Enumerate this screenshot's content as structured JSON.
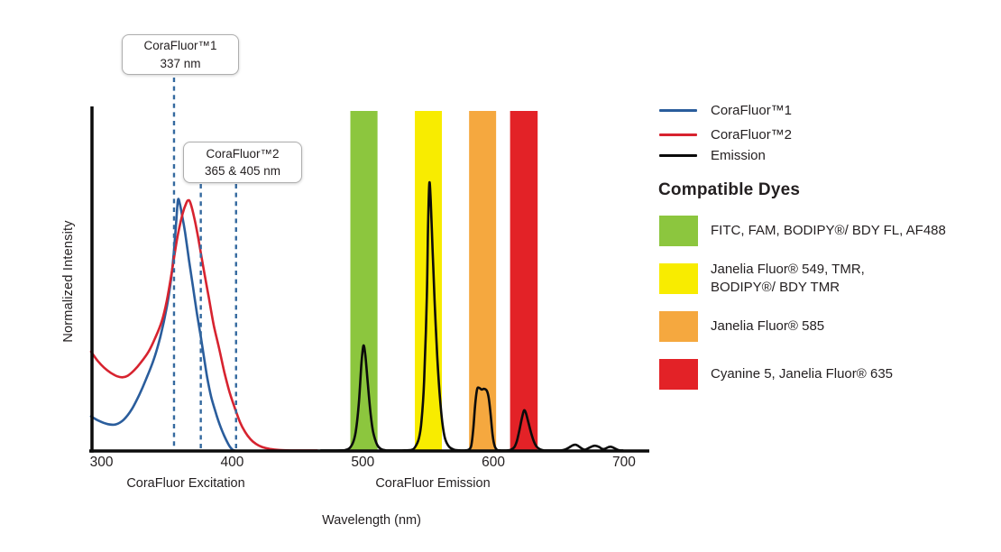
{
  "chart_data": {
    "type": "line",
    "title": "",
    "xlabel": "Wavelength (nm)",
    "ylabel": "Normalized Intensity",
    "x_ticks": [
      300,
      400,
      500,
      600,
      700
    ],
    "xlim": [
      292,
      718
    ],
    "ylim": [
      0,
      1.1
    ],
    "grid": false,
    "legend_position": "right",
    "x_section_labels": [
      {
        "text": "CoraFluor Excitation"
      },
      {
        "text": "CoraFluor Emission"
      }
    ],
    "dashed_markers_nm": [
      355.5,
      376,
      403
    ],
    "marker_color": "#34699f",
    "axis_color": "#0b0b0b",
    "bands": [
      {
        "name": "FITC-FAM-BODIPY-FL-AF488-band",
        "color": "#8cc63e",
        "from_nm": 490.5,
        "to_nm": 511.3
      },
      {
        "name": "JaneliaFluor549-TMR-band",
        "color": "#f8ec00",
        "from_nm": 539.9,
        "to_nm": 560.6
      },
      {
        "name": "JaneliaFluor585-band",
        "color": "#f5a83f",
        "from_nm": 581.4,
        "to_nm": 602.1
      },
      {
        "name": "Cyanine5-JaneliaFluor635-band",
        "color": "#e32227",
        "from_nm": 612.8,
        "to_nm": 633.9
      }
    ],
    "series": [
      {
        "name": "CoraFluor™1",
        "color": "#2a5d9c",
        "points": [
          [
            292,
            0.138
          ],
          [
            298,
            0.12
          ],
          [
            305,
            0.107
          ],
          [
            311,
            0.106
          ],
          [
            317,
            0.125
          ],
          [
            323,
            0.165
          ],
          [
            329,
            0.225
          ],
          [
            334,
            0.285
          ],
          [
            340,
            0.365
          ],
          [
            345,
            0.455
          ],
          [
            350,
            0.575
          ],
          [
            353,
            0.675
          ],
          [
            355,
            0.77
          ],
          [
            357,
            0.9
          ],
          [
            358.5,
            1.0
          ],
          [
            360,
            0.985
          ],
          [
            362,
            0.93
          ],
          [
            364,
            0.87
          ],
          [
            367,
            0.76
          ],
          [
            370,
            0.655
          ],
          [
            373,
            0.55
          ],
          [
            376,
            0.455
          ],
          [
            379,
            0.355
          ],
          [
            381,
            0.29
          ],
          [
            384,
            0.215
          ],
          [
            388,
            0.144
          ],
          [
            391,
            0.098
          ],
          [
            394,
            0.06
          ],
          [
            397,
            0.028
          ],
          [
            399,
            0.012
          ],
          [
            401,
            0.002
          ],
          [
            402,
            0
          ]
        ]
      },
      {
        "name": "CoraFluor™2",
        "color": "#d7232f",
        "points": [
          [
            292,
            0.396
          ],
          [
            297,
            0.36
          ],
          [
            302,
            0.332
          ],
          [
            307,
            0.312
          ],
          [
            312,
            0.298
          ],
          [
            316,
            0.294
          ],
          [
            320,
            0.3
          ],
          [
            325,
            0.322
          ],
          [
            330,
            0.352
          ],
          [
            336,
            0.396
          ],
          [
            341,
            0.45
          ],
          [
            346,
            0.515
          ],
          [
            350,
            0.6
          ],
          [
            354,
            0.72
          ],
          [
            358,
            0.85
          ],
          [
            362,
            0.945
          ],
          [
            365,
            0.99
          ],
          [
            366.5,
            1.0
          ],
          [
            368,
            0.99
          ],
          [
            371,
            0.93
          ],
          [
            374,
            0.85
          ],
          [
            378,
            0.73
          ],
          [
            382,
            0.615
          ],
          [
            386,
            0.5
          ],
          [
            390,
            0.41
          ],
          [
            394,
            0.315
          ],
          [
            398,
            0.235
          ],
          [
            402,
            0.172
          ],
          [
            406,
            0.115
          ],
          [
            410,
            0.075
          ],
          [
            414,
            0.047
          ],
          [
            418,
            0.029
          ],
          [
            423,
            0.016
          ],
          [
            429,
            0.008
          ],
          [
            436,
            0.004
          ],
          [
            445,
            0.0015
          ],
          [
            455,
            0
          ],
          [
            465,
            0
          ]
        ]
      },
      {
        "name": "Emission",
        "color": "#0b0b0b",
        "points": [
          [
            468,
            0
          ],
          [
            474,
            0
          ],
          [
            480,
            0.001
          ],
          [
            486,
            0.003
          ],
          [
            490,
            0.012
          ],
          [
            493,
            0.04
          ],
          [
            495,
            0.09
          ],
          [
            497,
            0.19
          ],
          [
            499,
            0.35
          ],
          [
            500.5,
            0.42
          ],
          [
            502,
            0.38
          ],
          [
            504,
            0.26
          ],
          [
            506,
            0.15
          ],
          [
            508,
            0.075
          ],
          [
            511,
            0.025
          ],
          [
            514,
            0.008
          ],
          [
            518,
            0.002
          ],
          [
            524,
            0
          ],
          [
            530,
            0
          ],
          [
            537,
            0.004
          ],
          [
            540,
            0.015
          ],
          [
            543,
            0.05
          ],
          [
            545,
            0.12
          ],
          [
            547,
            0.28
          ],
          [
            549,
            0.6
          ],
          [
            550,
            0.9
          ],
          [
            551,
            1.068
          ],
          [
            552,
            1.0
          ],
          [
            553.5,
            0.8
          ],
          [
            555,
            0.6
          ],
          [
            557,
            0.38
          ],
          [
            559,
            0.22
          ],
          [
            561,
            0.11
          ],
          [
            563,
            0.05
          ],
          [
            566,
            0.018
          ],
          [
            570,
            0.005
          ],
          [
            575,
            0.001
          ],
          [
            578,
            0.001
          ],
          [
            581,
            0.005
          ],
          [
            583,
            0.02
          ],
          [
            584.5,
            0.08
          ],
          [
            586,
            0.18
          ],
          [
            587.5,
            0.245
          ],
          [
            589,
            0.252
          ],
          [
            591,
            0.245
          ],
          [
            593,
            0.248
          ],
          [
            595,
            0.24
          ],
          [
            596.5,
            0.21
          ],
          [
            598,
            0.14
          ],
          [
            599.5,
            0.06
          ],
          [
            601,
            0.02
          ],
          [
            603,
            0.004
          ],
          [
            606,
            0.001
          ],
          [
            610,
            0.001
          ],
          [
            613,
            0.004
          ],
          [
            616,
            0.015
          ],
          [
            618,
            0.04
          ],
          [
            620,
            0.085
          ],
          [
            622,
            0.135
          ],
          [
            623.5,
            0.162
          ],
          [
            625,
            0.15
          ],
          [
            627,
            0.11
          ],
          [
            629,
            0.07
          ],
          [
            631,
            0.038
          ],
          [
            633,
            0.018
          ],
          [
            636,
            0.006
          ],
          [
            639,
            0.002
          ],
          [
            643,
            0.001
          ],
          [
            647,
            0.001
          ],
          [
            651,
            0.002
          ],
          [
            655,
            0.006
          ],
          [
            658,
            0.014
          ],
          [
            661,
            0.023
          ],
          [
            663,
            0.025
          ],
          [
            665,
            0.02
          ],
          [
            668,
            0.009
          ],
          [
            670,
            0.005
          ],
          [
            673,
            0.012
          ],
          [
            676,
            0.019
          ],
          [
            678,
            0.021
          ],
          [
            681,
            0.016
          ],
          [
            683,
            0.009
          ],
          [
            685,
            0.008
          ],
          [
            688,
            0.015
          ],
          [
            690,
            0.017
          ],
          [
            692,
            0.013
          ],
          [
            695,
            0.005
          ],
          [
            697,
            0.002
          ],
          [
            699,
            0
          ]
        ]
      }
    ]
  },
  "callouts": [
    {
      "line1": "CoraFluor™1",
      "line2": "337 nm"
    },
    {
      "line1": "CoraFluor™2",
      "line2": "365 & 405 nm"
    }
  ],
  "legend": {
    "items": [
      {
        "label": "CoraFluor™1",
        "color": "#2a5d9c"
      },
      {
        "label": "CoraFluor™2",
        "color": "#d7232f"
      },
      {
        "label": "Emission",
        "color": "#0b0b0b"
      }
    ]
  },
  "dyes": {
    "heading": "Compatible Dyes",
    "items": [
      {
        "color": "#8cc63e",
        "lines": [
          "FITC, FAM, BODIPY®/ BDY FL, AF488"
        ]
      },
      {
        "color": "#f8ec00",
        "lines": [
          "Janelia Fluor® 549, TMR,",
          "BODIPY®/ BDY TMR"
        ]
      },
      {
        "color": "#f5a83f",
        "lines": [
          "Janelia Fluor® 585"
        ]
      },
      {
        "color": "#e32227",
        "lines": [
          "Cyanine 5, Janelia Fluor® 635"
        ]
      }
    ]
  }
}
